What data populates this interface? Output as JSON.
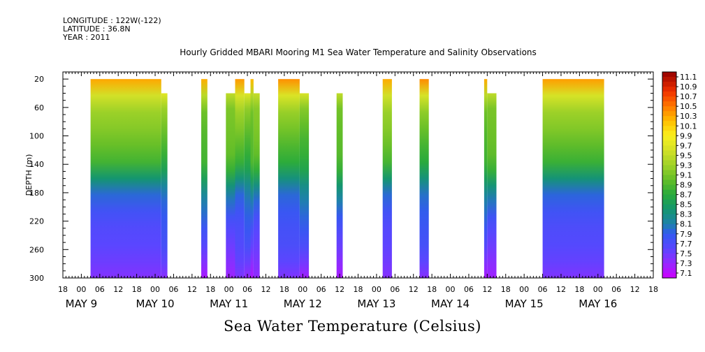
{
  "header": {
    "longitude": "LONGITUDE : 122W(-122)",
    "latitude": "LATITUDE : 36.8N",
    "year": "YEAR : 2011"
  },
  "title": "Hourly Gridded MBARI Mooring M1 Sea Water Temperature and Salinity Observations",
  "bottom_title": "Sea Water Temperature (Celsius)",
  "chart_data": {
    "type": "heatmap",
    "title": "Hourly Gridded MBARI Mooring M1 Sea Water Temperature and Salinity Observations",
    "xlabel": "",
    "ylabel": "DEPTH (m)",
    "y_inverted": true,
    "ylim": [
      10,
      300
    ],
    "xlim_hours": [
      -6,
      186
    ],
    "time_origin": "2011-05-09 00:00",
    "x_tick_labels": [
      "18",
      "00",
      "06",
      "12",
      "18",
      "00",
      "06",
      "12",
      "18",
      "00",
      "06",
      "12",
      "18",
      "00",
      "06",
      "12",
      "18",
      "00",
      "06",
      "12",
      "18",
      "00",
      "06",
      "12",
      "18",
      "00",
      "06",
      "12",
      "18",
      "00",
      "06",
      "12",
      "18"
    ],
    "date_labels": [
      "MAY  9",
      "MAY 10",
      "MAY 11",
      "MAY 12",
      "MAY 13",
      "MAY 14",
      "MAY 15",
      "MAY 16"
    ],
    "y_ticks": [
      20,
      60,
      100,
      140,
      180,
      220,
      260,
      300
    ],
    "colorbar": {
      "labels": [
        "11.1",
        "10.9",
        "10.7",
        "10.5",
        "10.3",
        "10.1",
        "9.9",
        "9.7",
        "9.5",
        "9.3",
        "9.1",
        "8.9",
        "8.7",
        "8.5",
        "8.3",
        "8.1",
        "7.9",
        "7.7",
        "7.5",
        "7.3",
        "7.1"
      ],
      "min": 7.0,
      "max": 11.2
    },
    "segments": [
      {
        "start": 3,
        "end": 26,
        "top": 20
      },
      {
        "start": 26,
        "end": 28,
        "top": 40
      },
      {
        "start": 39,
        "end": 41,
        "top": 20
      },
      {
        "start": 47,
        "end": 50,
        "top": 40
      },
      {
        "start": 50,
        "end": 53,
        "top": 20
      },
      {
        "start": 53,
        "end": 55,
        "top": 40
      },
      {
        "start": 55,
        "end": 56,
        "top": 20
      },
      {
        "start": 56,
        "end": 58,
        "top": 40
      },
      {
        "start": 64,
        "end": 71,
        "top": 20
      },
      {
        "start": 71,
        "end": 74,
        "top": 40
      },
      {
        "start": 83,
        "end": 85,
        "top": 40
      },
      {
        "start": 98,
        "end": 101,
        "top": 20
      },
      {
        "start": 110,
        "end": 113,
        "top": 20
      },
      {
        "start": 131,
        "end": 132,
        "top": 20
      },
      {
        "start": 132,
        "end": 135,
        "top": 40
      },
      {
        "start": 150,
        "end": 170,
        "top": 20
      }
    ],
    "profile": {
      "depth": [
        20,
        40,
        60,
        100,
        140,
        180,
        220,
        260,
        300
      ],
      "temp": [
        10.3,
        9.6,
        9.2,
        9.0,
        8.8,
        8.1,
        7.8,
        7.6,
        7.3
      ]
    }
  }
}
